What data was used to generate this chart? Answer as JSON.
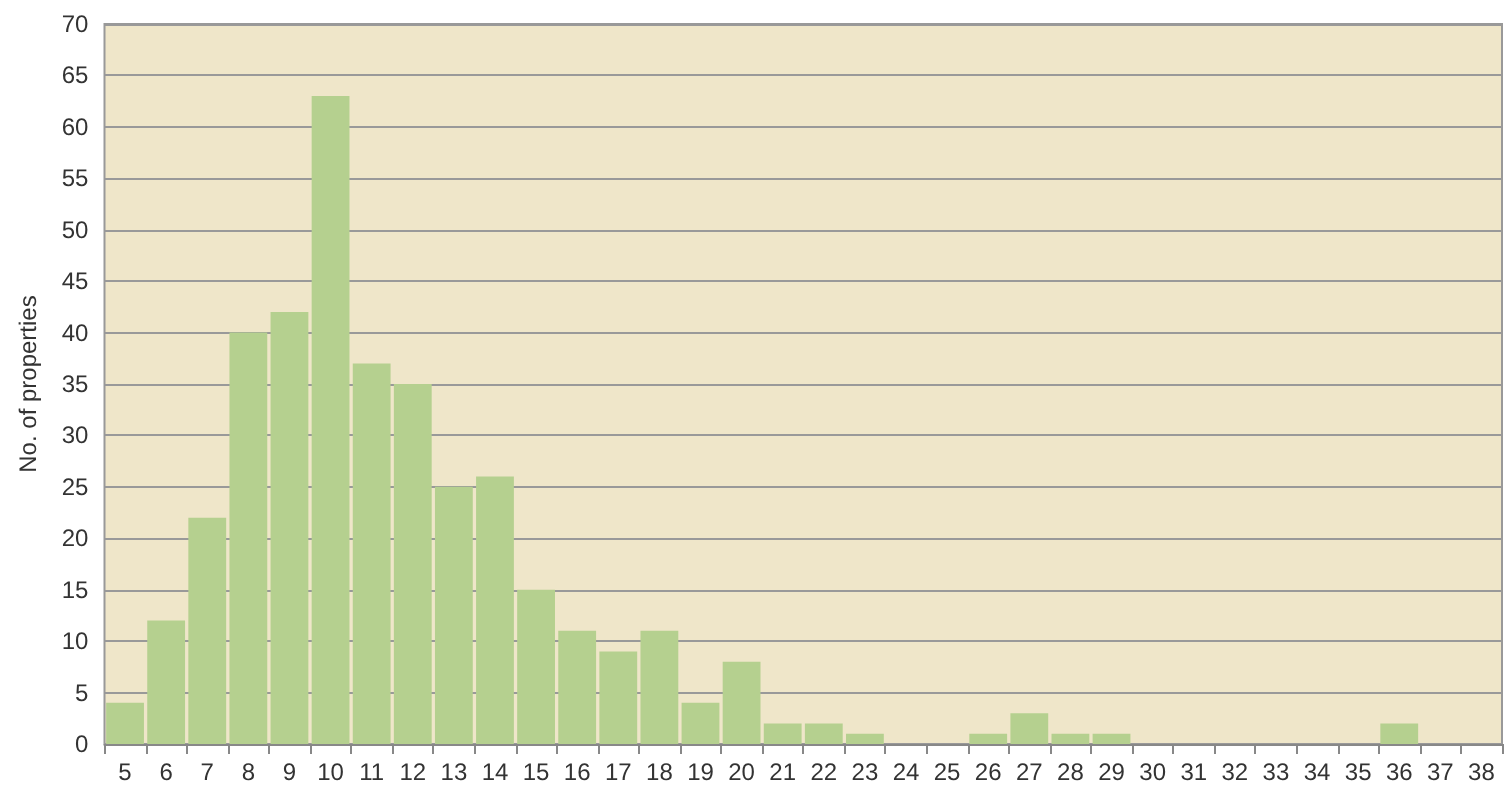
{
  "chart_data": {
    "type": "bar",
    "ylabel": "No. of properties",
    "categories": [
      "5",
      "6",
      "7",
      "8",
      "9",
      "10",
      "11",
      "12",
      "13",
      "14",
      "15",
      "16",
      "17",
      "18",
      "19",
      "20",
      "21",
      "22",
      "23",
      "24",
      "25",
      "26",
      "27",
      "28",
      "29",
      "30",
      "31",
      "32",
      "33",
      "34",
      "35",
      "36",
      "37",
      "38"
    ],
    "values": [
      4,
      12,
      22,
      40,
      42,
      63,
      37,
      35,
      25,
      26,
      15,
      11,
      9,
      11,
      4,
      8,
      2,
      2,
      1,
      0,
      0,
      1,
      3,
      1,
      1,
      0,
      0,
      0,
      0,
      0,
      0,
      2,
      0,
      0
    ],
    "color": "#b5d08f",
    "ylim": [
      0,
      70
    ],
    "yticks": [
      0,
      5,
      10,
      15,
      20,
      25,
      30,
      35,
      40,
      45,
      50,
      55,
      60,
      65,
      70
    ],
    "grid": "y"
  }
}
